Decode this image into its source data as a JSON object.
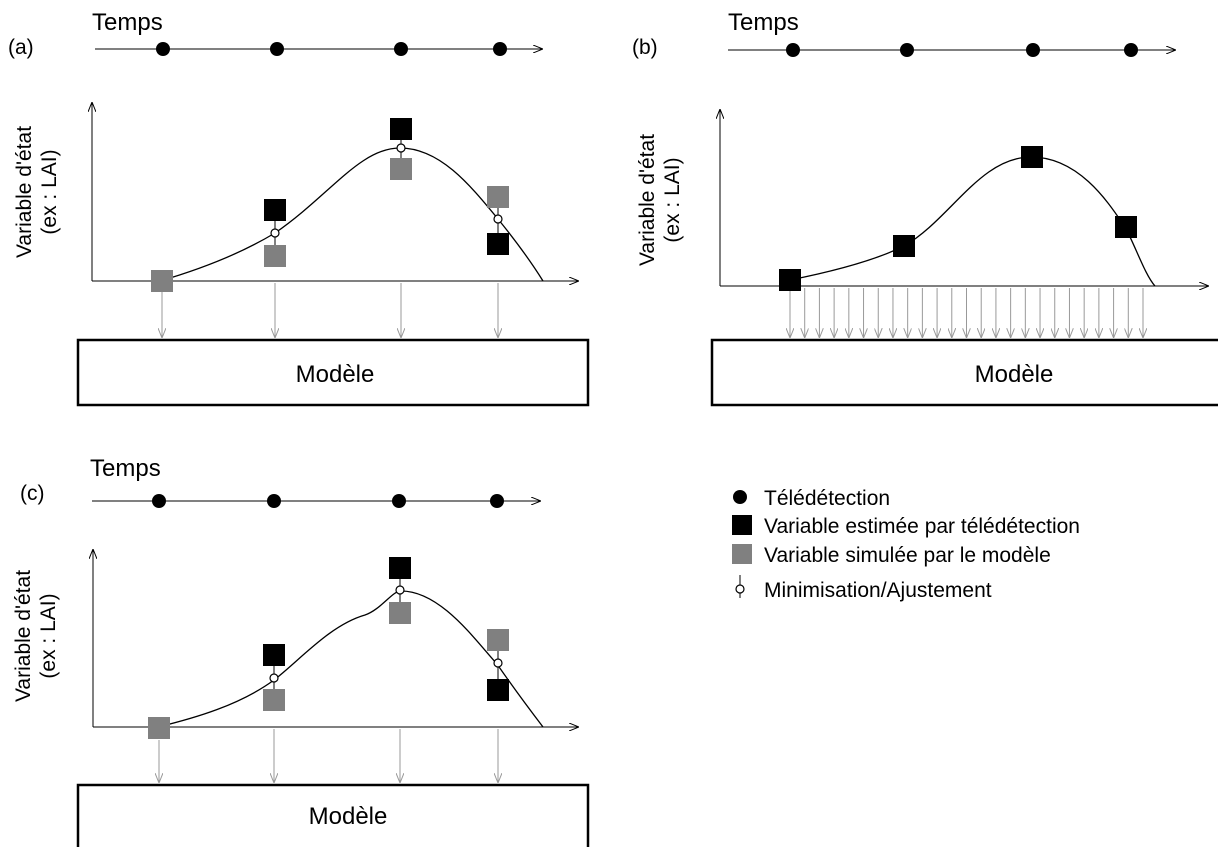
{
  "panels": {
    "a": {
      "label": "(a)",
      "time_label": "Temps",
      "y_label_line1": "Variable d'état",
      "y_label_line2": "(ex : LAI)",
      "model_label": "Modèle"
    },
    "b": {
      "label": "(b)",
      "time_label": "Temps",
      "y_label_line1": "Variable d'état",
      "y_label_line2": "(ex : LAI)",
      "model_label": "Modèle"
    },
    "c": {
      "label": "(c)",
      "time_label": "Temps",
      "y_label_line1": "Variable d'état",
      "y_label_line2": "(ex : LAI)",
      "model_label": "Modèle"
    }
  },
  "legend": {
    "remote_sensing": "Télédétection",
    "estimated_variable": "Variable estimée par télédétection",
    "simulated_variable": "Variable simulée par le modèle",
    "minimisation": "Minimisation/Ajustement"
  },
  "colors": {
    "estimated": "#000000",
    "simulated": "#808080",
    "arrow": "#999999",
    "line": "#000000"
  }
}
